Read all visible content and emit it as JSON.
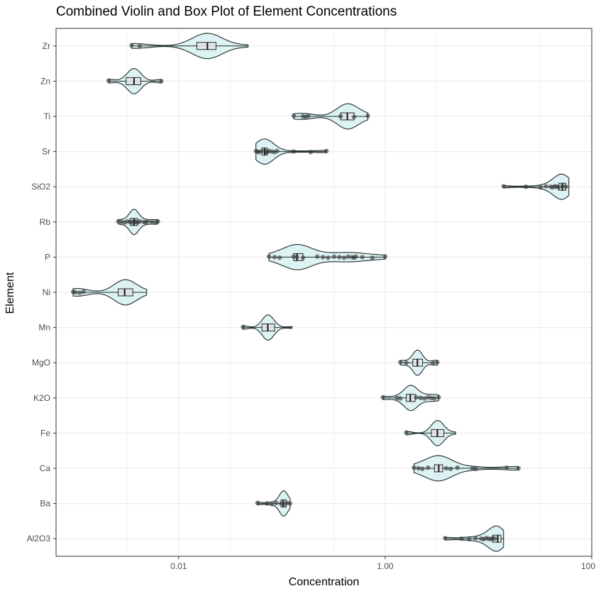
{
  "chart_data": {
    "type": "violin",
    "title": "Combined Violin and Box Plot of Element Concentrations",
    "xlabel": "Concentration",
    "ylabel": "Element",
    "x_scale": "log10",
    "xlim": [
      0.00065,
      100
    ],
    "x_ticks": [
      0.01,
      1.0,
      100.0
    ],
    "x_tick_labels": [
      "0.01",
      "1.00",
      "100.0"
    ],
    "grid": true,
    "categories": [
      "Zr",
      "Zn",
      "Ti",
      "Sr",
      "SiO2",
      "Rb",
      "P",
      "Ni",
      "Mn",
      "MgO",
      "K2O",
      "Fe",
      "Ca",
      "Ba",
      "Al2O3"
    ],
    "series": [
      {
        "element": "Zr",
        "min": 0.0035,
        "q1": 0.015,
        "median": 0.019,
        "q3": 0.023,
        "max": 0.047,
        "points": [
          0.0035,
          0.0042
        ]
      },
      {
        "element": "Zn",
        "min": 0.0021,
        "q1": 0.0031,
        "median": 0.0037,
        "q3": 0.0043,
        "max": 0.0068,
        "points": [
          0.0021,
          0.0068
        ]
      },
      {
        "element": "Ti",
        "min": 0.13,
        "q1": 0.37,
        "median": 0.43,
        "q3": 0.5,
        "max": 0.68,
        "points": [
          0.13,
          0.16,
          0.17,
          0.18,
          0.37,
          0.5,
          0.68
        ]
      },
      {
        "element": "Sr",
        "min": 0.056,
        "q1": 0.064,
        "median": 0.068,
        "q3": 0.072,
        "max": 0.27,
        "points": [
          0.056,
          0.058,
          0.06,
          0.064,
          0.07,
          0.072,
          0.075,
          0.08,
          0.085,
          0.09,
          0.13,
          0.19,
          0.27
        ]
      },
      {
        "element": "SiO2",
        "min": 14,
        "q1": 48,
        "median": 52,
        "q3": 56,
        "max": 60,
        "points": [
          14,
          23,
          32,
          36,
          40,
          42,
          44,
          46,
          48,
          52,
          56
        ]
      },
      {
        "element": "Rb",
        "min": 0.0026,
        "q1": 0.0034,
        "median": 0.0037,
        "q3": 0.004,
        "max": 0.0063,
        "points": [
          0.0026,
          0.0028,
          0.003,
          0.0032,
          0.0034,
          0.0036,
          0.0037,
          0.0038,
          0.004,
          0.0042,
          0.0046,
          0.0048,
          0.005,
          0.0055,
          0.006,
          0.0063
        ]
      },
      {
        "element": "P",
        "min": 0.075,
        "q1": 0.13,
        "median": 0.14,
        "q3": 0.16,
        "max": 1.0,
        "points": [
          0.075,
          0.085,
          0.095,
          0.13,
          0.14,
          0.16,
          0.22,
          0.25,
          0.28,
          0.32,
          0.36,
          0.4,
          0.44,
          0.48,
          0.5,
          0.52,
          0.6,
          0.75,
          1.0
        ]
      },
      {
        "element": "Ni",
        "min": 0.00095,
        "q1": 0.0026,
        "median": 0.003,
        "q3": 0.0036,
        "max": 0.0049,
        "points": [
          0.00095,
          0.001,
          0.0011,
          0.0012
        ]
      },
      {
        "element": "Mn",
        "min": 0.042,
        "q1": 0.064,
        "median": 0.073,
        "q3": 0.085,
        "max": 0.125,
        "points": [
          0.042
        ]
      },
      {
        "element": "MgO",
        "min": 1.4,
        "q1": 1.85,
        "median": 2.05,
        "q3": 2.3,
        "max": 3.2,
        "points": [
          1.4,
          1.6,
          2.9,
          3.2
        ]
      },
      {
        "element": "K2O",
        "min": 0.95,
        "q1": 1.6,
        "median": 1.75,
        "q3": 1.95,
        "max": 3.3,
        "points": [
          0.95,
          1.3,
          1.4,
          2.0,
          2.2,
          2.4,
          2.6,
          2.8,
          3.0,
          3.3
        ]
      },
      {
        "element": "Fe",
        "min": 1.6,
        "q1": 2.8,
        "median": 3.2,
        "q3": 3.7,
        "max": 4.8,
        "points": [
          1.6
        ]
      },
      {
        "element": "Ca",
        "min": 1.9,
        "q1": 3.0,
        "median": 3.3,
        "q3": 3.6,
        "max": 19.5,
        "points": [
          1.9,
          2.1,
          2.3,
          2.6,
          3.9,
          4.3,
          5.0,
          7.0,
          7.5,
          15.0,
          19.5
        ]
      },
      {
        "element": "Ba",
        "min": 0.058,
        "q1": 0.098,
        "median": 0.103,
        "q3": 0.11,
        "max": 0.12,
        "points": [
          0.058,
          0.072,
          0.08,
          0.088,
          0.098,
          0.105,
          0.112,
          0.12
        ]
      },
      {
        "element": "Al2O3",
        "min": 3.8,
        "q1": 11.0,
        "median": 12.3,
        "q3": 13.2,
        "max": 14.0,
        "points": [
          3.8,
          5.5,
          6.5,
          7.5,
          8.5,
          9.0,
          9.5,
          10.0,
          10.5,
          11.0,
          11.5
        ]
      }
    ]
  },
  "colors": {
    "violin_fill": "#ddf2f2",
    "violin_stroke": "#1f2a2a",
    "box_fill": "#e6e6e6",
    "point_fill": "#333333",
    "grid": "#ebebeb",
    "panel_border": "#333333"
  }
}
